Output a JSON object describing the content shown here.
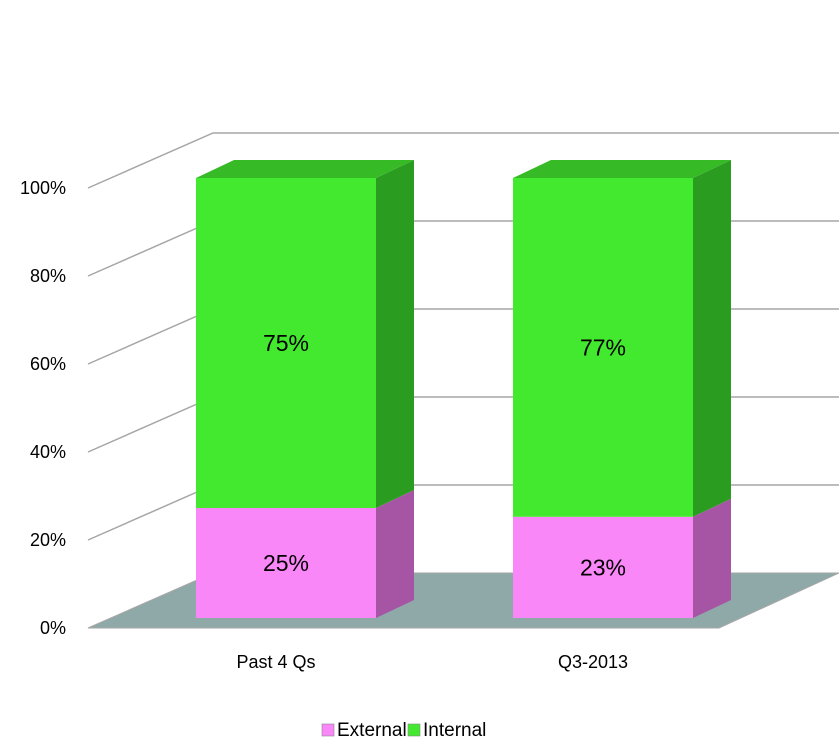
{
  "chart_data": {
    "type": "bar",
    "stacked": true,
    "three_d": true,
    "categories": [
      "Past 4 Qs",
      "Q3-2013"
    ],
    "series": [
      {
        "name": "External",
        "values": [
          25,
          23
        ],
        "labels": [
          "25%",
          "23%"
        ],
        "color": "#f987f7"
      },
      {
        "name": "Internal",
        "values": [
          75,
          77
        ],
        "labels": [
          "75%",
          "77%"
        ],
        "color": "#43e92e"
      }
    ],
    "ylim": [
      0,
      100
    ],
    "y_ticks": [
      0,
      20,
      40,
      60,
      80,
      100
    ],
    "y_tick_labels": [
      "0%",
      "20%",
      "40%",
      "60%",
      "80%",
      "100%"
    ],
    "grid": true,
    "legend": "bottom",
    "colors": {
      "floor": "#8fa9a9",
      "external_side": "#a654a4",
      "internal_side": "#2a9c20",
      "gridline": "#a6a6a6"
    }
  }
}
